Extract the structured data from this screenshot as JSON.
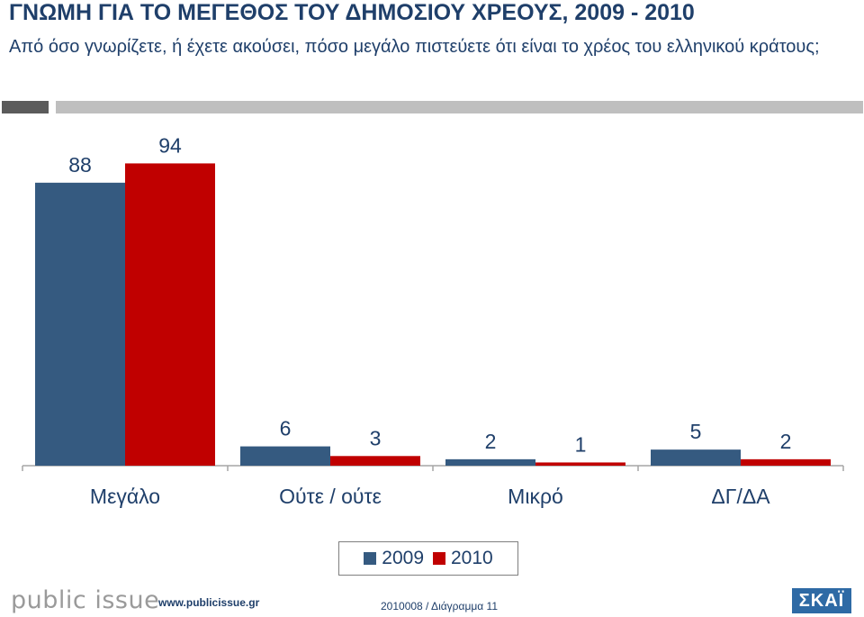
{
  "header": {
    "title": "ΓΝΩΜΗ ΓΙΑ ΤΟ ΜΕΓΕΘΟΣ ΤΟΥ ΔΗΜΟΣΙΟΥ ΧΡΕΟΥΣ, 2009 - 2010",
    "subtitle": "Από όσο γνωρίζετε, ή έχετε ακούσει, πόσο μεγάλο πιστεύετε ότι είναι το χρέος του ελληνικού κράτους;"
  },
  "chart_data": {
    "type": "bar",
    "categories": [
      "Μεγάλο",
      "Ούτε / ούτε",
      "Μικρό",
      "ΔΓ/ΔΑ"
    ],
    "series": [
      {
        "name": "2009",
        "values": [
          88,
          6,
          2,
          5
        ],
        "color": "#355a80"
      },
      {
        "name": "2010",
        "values": [
          94,
          3,
          1,
          2
        ],
        "color": "#c00000"
      }
    ],
    "ylim": [
      0,
      100
    ],
    "grid": false,
    "legend": "bottom-center"
  },
  "legend": {
    "items": [
      "2009",
      "2010"
    ]
  },
  "footer": {
    "logo": "public issue",
    "url": "www.publicissue.gr",
    "ref": "2010008 / Διάγραμμα 11",
    "brand": "ΣΚΑΪ"
  }
}
